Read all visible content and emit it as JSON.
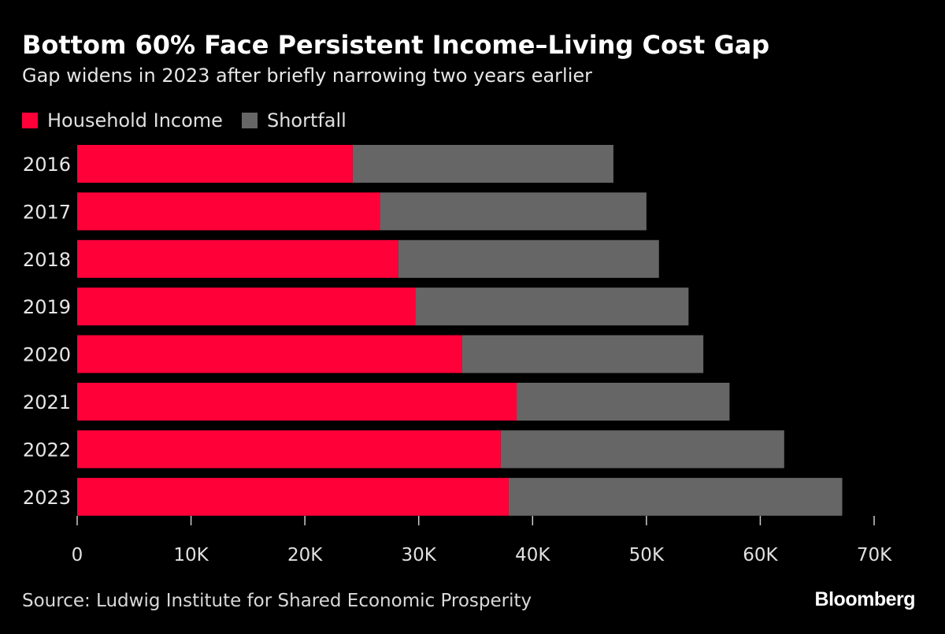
{
  "chart_data": {
    "type": "bar",
    "orientation": "horizontal",
    "stacked": true,
    "title": "Bottom 60% Face Persistent Income–Living Cost Gap",
    "subtitle": "Gap widens in 2023 after briefly narrowing two years earlier",
    "categories": [
      "2016",
      "2017",
      "2018",
      "2019",
      "2020",
      "2021",
      "2022",
      "2023"
    ],
    "series": [
      {
        "name": "Household Income",
        "color": "#ff0039",
        "values": [
          24200,
          26600,
          28200,
          29700,
          33800,
          38600,
          37200,
          37900
        ]
      },
      {
        "name": "Shortfall",
        "color": "#666666",
        "values": [
          22900,
          23400,
          22900,
          24000,
          21200,
          18700,
          24900,
          29300
        ]
      }
    ],
    "xlim": [
      0,
      70000
    ],
    "x_ticks": [
      0,
      10000,
      20000,
      30000,
      40000,
      50000,
      60000,
      70000
    ],
    "x_tick_labels": [
      "0",
      "10K",
      "20K",
      "30K",
      "40K",
      "50K",
      "60K",
      "70K"
    ],
    "xlabel": "",
    "ylabel": "",
    "grid": false,
    "legend_position": "top-left",
    "source": "Source: Ludwig Institute for Shared Economic Prosperity",
    "brand": "Bloomberg"
  }
}
